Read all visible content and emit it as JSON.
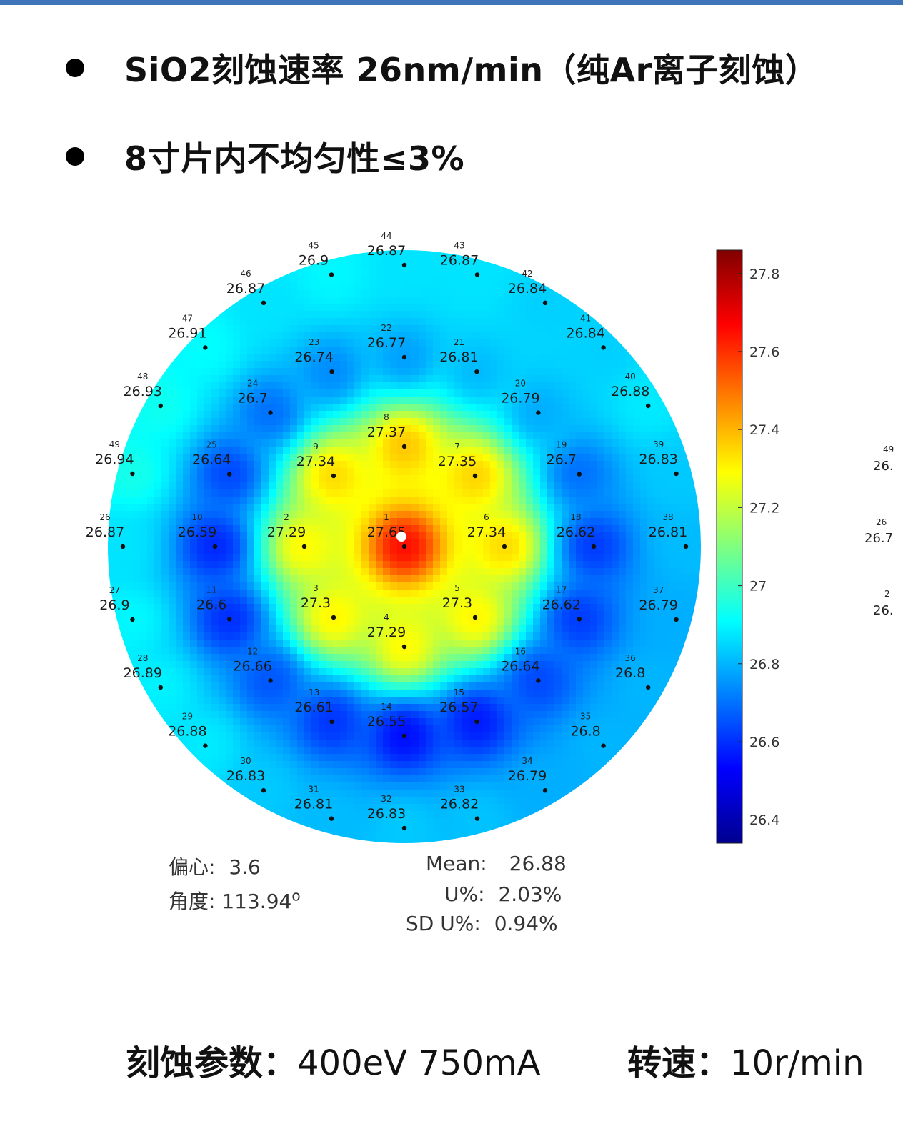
{
  "header": {
    "bullet1": "SiO2刻蚀速率 26nm/min（纯Ar离子刻蚀）",
    "bullet2": "8寸片内不均匀性≤3%"
  },
  "chart_data": {
    "type": "heatmap",
    "title": "",
    "colormap": "jet",
    "colorbar": {
      "min": 26.34,
      "max": 27.86,
      "ticks": [
        "27.8",
        "27.6",
        "27.4",
        "27.2",
        "27",
        "26.8",
        "26.6",
        "26.4"
      ]
    },
    "points": [
      {
        "id": 1,
        "label": "27.65",
        "ring": 0,
        "angle": 0
      },
      {
        "id": 2,
        "label": "27.29",
        "ring": 1,
        "angle": 180
      },
      {
        "id": 3,
        "label": "27.3",
        "ring": 1,
        "angle": 225
      },
      {
        "id": 4,
        "label": "27.29",
        "ring": 1,
        "angle": 270
      },
      {
        "id": 5,
        "label": "27.3",
        "ring": 1,
        "angle": 315
      },
      {
        "id": 6,
        "label": "27.34",
        "ring": 1,
        "angle": 0
      },
      {
        "id": 7,
        "label": "27.35",
        "ring": 1,
        "angle": 45
      },
      {
        "id": 8,
        "label": "27.37",
        "ring": 1,
        "angle": 90
      },
      {
        "id": 9,
        "label": "27.34",
        "ring": 1,
        "angle": 135
      },
      {
        "id": 10,
        "label": "26.59",
        "ring": 2,
        "angle": 180
      },
      {
        "id": 11,
        "label": "26.6",
        "ring": 2,
        "angle": 202.5
      },
      {
        "id": 12,
        "label": "26.66",
        "ring": 2,
        "angle": 225
      },
      {
        "id": 13,
        "label": "26.61",
        "ring": 2,
        "angle": 247.5
      },
      {
        "id": 14,
        "label": "26.55",
        "ring": 2,
        "angle": 270
      },
      {
        "id": 15,
        "label": "26.57",
        "ring": 2,
        "angle": 292.5
      },
      {
        "id": 16,
        "label": "26.64",
        "ring": 2,
        "angle": 315
      },
      {
        "id": 17,
        "label": "26.62",
        "ring": 2,
        "angle": 337.5
      },
      {
        "id": 18,
        "label": "26.62",
        "ring": 2,
        "angle": 0
      },
      {
        "id": 19,
        "label": "26.7",
        "ring": 2,
        "angle": 22.5
      },
      {
        "id": 20,
        "label": "26.79",
        "ring": 2,
        "angle": 45
      },
      {
        "id": 21,
        "label": "26.81",
        "ring": 2,
        "angle": 67.5
      },
      {
        "id": 22,
        "label": "26.77",
        "ring": 2,
        "angle": 90
      },
      {
        "id": 23,
        "label": "26.74",
        "ring": 2,
        "angle": 112.5
      },
      {
        "id": 24,
        "label": "26.7",
        "ring": 2,
        "angle": 135
      },
      {
        "id": 25,
        "label": "26.64",
        "ring": 2,
        "angle": 157.5
      },
      {
        "id": 26,
        "label": "26.87",
        "ring": 3,
        "angle": 180
      },
      {
        "id": 27,
        "label": "26.9",
        "ring": 3,
        "angle": 195
      },
      {
        "id": 28,
        "label": "26.89",
        "ring": 3,
        "angle": 210
      },
      {
        "id": 29,
        "label": "26.88",
        "ring": 3,
        "angle": 225
      },
      {
        "id": 30,
        "label": "26.83",
        "ring": 3,
        "angle": 240
      },
      {
        "id": 31,
        "label": "26.81",
        "ring": 3,
        "angle": 255
      },
      {
        "id": 32,
        "label": "26.83",
        "ring": 3,
        "angle": 270
      },
      {
        "id": 33,
        "label": "26.82",
        "ring": 3,
        "angle": 285
      },
      {
        "id": 34,
        "label": "26.79",
        "ring": 3,
        "angle": 300
      },
      {
        "id": 35,
        "label": "26.8",
        "ring": 3,
        "angle": 315
      },
      {
        "id": 36,
        "label": "26.8",
        "ring": 3,
        "angle": 330
      },
      {
        "id": 37,
        "label": "26.79",
        "ring": 3,
        "angle": 345
      },
      {
        "id": 38,
        "label": "26.81",
        "ring": 3,
        "angle": 0
      },
      {
        "id": 39,
        "label": "26.83",
        "ring": 3,
        "angle": 15
      },
      {
        "id": 40,
        "label": "26.88",
        "ring": 3,
        "angle": 30
      },
      {
        "id": 41,
        "label": "26.84",
        "ring": 3,
        "angle": 45
      },
      {
        "id": 42,
        "label": "26.84",
        "ring": 3,
        "angle": 60
      },
      {
        "id": 43,
        "label": "26.87",
        "ring": 3,
        "angle": 75
      },
      {
        "id": 44,
        "label": "26.87",
        "ring": 3,
        "angle": 90
      },
      {
        "id": 45,
        "label": "26.9",
        "ring": 3,
        "angle": 105
      },
      {
        "id": 46,
        "label": "26.87",
        "ring": 3,
        "angle": 120
      },
      {
        "id": 47,
        "label": "26.91",
        "ring": 3,
        "angle": 135
      },
      {
        "id": 48,
        "label": "26.93",
        "ring": 3,
        "angle": 150
      },
      {
        "id": 49,
        "label": "26.94",
        "ring": 3,
        "angle": 165
      }
    ]
  },
  "stats": {
    "eccentricity_label": "偏心:",
    "eccentricity_value": "3.6",
    "angle_label": "角度:",
    "angle_value": "113.94",
    "degree_mark": "o",
    "mean_label": "Mean:",
    "mean_value": "26.88",
    "u_label": "U%:",
    "u_value": "2.03%",
    "sdu_label": "SD U%:",
    "sdu_value": "0.94%"
  },
  "params": {
    "etch_label": "刻蚀参数：",
    "etch_value": "400eV 750mA",
    "speed_label": "转速：",
    "speed_value": "10r/min"
  },
  "edge_partial": [
    "49",
    "26.",
    "26",
    "26.7",
    "2",
    "26."
  ]
}
